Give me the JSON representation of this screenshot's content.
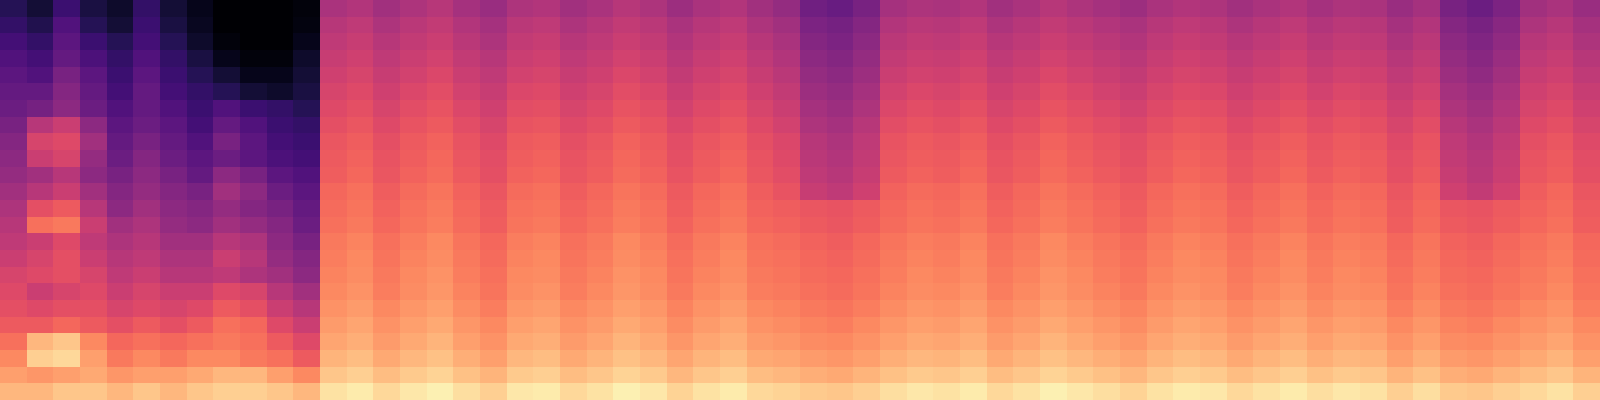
{
  "chart_data": {
    "type": "heatmap",
    "color": "magma",
    "tick_labels": false,
    "zlim": [
      0,
      100
    ],
    "cells": [
      [
        15,
        10,
        20,
        12,
        8,
        18,
        10,
        5,
        0,
        0,
        0,
        2,
        47,
        49,
        45,
        48,
        50,
        46,
        43,
        48,
        49,
        45,
        47,
        50,
        48,
        44,
        47,
        49,
        45,
        42,
        33,
        31,
        35,
        46,
        48,
        47,
        49,
        45,
        47,
        50,
        48,
        46,
        44,
        47,
        49,
        48,
        45,
        47,
        49,
        46,
        48,
        47,
        43,
        46,
        35,
        32,
        36,
        45,
        47,
        43
      ],
      [
        18,
        14,
        25,
        15,
        10,
        20,
        12,
        6,
        0,
        0,
        0,
        3,
        50,
        52,
        48,
        51,
        53,
        49,
        46,
        51,
        52,
        48,
        50,
        53,
        51,
        47,
        50,
        52,
        48,
        45,
        36,
        34,
        38,
        49,
        51,
        50,
        52,
        48,
        50,
        53,
        51,
        49,
        47,
        50,
        52,
        51,
        48,
        50,
        52,
        49,
        51,
        50,
        46,
        49,
        38,
        35,
        39,
        48,
        50,
        46
      ],
      [
        22,
        18,
        28,
        20,
        15,
        22,
        15,
        8,
        2,
        0,
        0,
        5,
        52,
        54,
        50,
        53,
        55,
        51,
        48,
        53,
        54,
        50,
        52,
        55,
        53,
        49,
        52,
        54,
        50,
        47,
        38,
        36,
        40,
        51,
        53,
        52,
        54,
        50,
        52,
        55,
        53,
        51,
        49,
        52,
        54,
        53,
        50,
        52,
        54,
        51,
        53,
        52,
        48,
        51,
        40,
        37,
        41,
        50,
        52,
        48
      ],
      [
        25,
        22,
        30,
        24,
        18,
        25,
        18,
        12,
        5,
        2,
        2,
        8,
        54,
        56,
        52,
        55,
        57,
        53,
        50,
        55,
        56,
        52,
        54,
        57,
        55,
        51,
        54,
        56,
        52,
        49,
        40,
        38,
        42,
        53,
        55,
        54,
        56,
        52,
        54,
        57,
        55,
        53,
        51,
        54,
        56,
        55,
        52,
        54,
        56,
        53,
        55,
        54,
        50,
        53,
        42,
        39,
        43,
        52,
        54,
        50
      ],
      [
        28,
        25,
        35,
        28,
        20,
        28,
        20,
        15,
        10,
        5,
        5,
        10,
        56,
        58,
        54,
        57,
        59,
        55,
        52,
        57,
        58,
        54,
        56,
        59,
        57,
        53,
        56,
        58,
        54,
        51,
        42,
        40,
        44,
        55,
        57,
        56,
        58,
        54,
        56,
        59,
        57,
        55,
        53,
        56,
        58,
        57,
        54,
        56,
        58,
        55,
        57,
        56,
        52,
        55,
        44,
        41,
        45,
        54,
        56,
        52
      ],
      [
        30,
        30,
        38,
        30,
        22,
        30,
        22,
        18,
        15,
        10,
        8,
        12,
        58,
        60,
        56,
        59,
        61,
        57,
        54,
        59,
        60,
        56,
        58,
        61,
        59,
        55,
        58,
        60,
        56,
        53,
        44,
        42,
        46,
        57,
        59,
        58,
        60,
        56,
        58,
        61,
        59,
        57,
        55,
        58,
        60,
        59,
        56,
        58,
        60,
        57,
        59,
        58,
        54,
        57,
        46,
        43,
        47,
        56,
        58,
        54
      ],
      [
        32,
        34,
        40,
        32,
        25,
        30,
        25,
        20,
        25,
        20,
        18,
        15,
        60,
        62,
        58,
        61,
        63,
        59,
        56,
        61,
        62,
        58,
        60,
        63,
        61,
        57,
        60,
        62,
        58,
        55,
        46,
        44,
        48,
        59,
        61,
        60,
        62,
        58,
        60,
        63,
        61,
        59,
        57,
        60,
        62,
        61,
        58,
        60,
        62,
        59,
        61,
        60,
        56,
        59,
        48,
        45,
        49,
        58,
        60,
        56
      ],
      [
        35,
        50,
        55,
        40,
        28,
        32,
        28,
        22,
        30,
        25,
        20,
        18,
        62,
        64,
        60,
        63,
        65,
        61,
        58,
        63,
        64,
        60,
        62,
        65,
        63,
        59,
        62,
        64,
        60,
        57,
        48,
        46,
        50,
        61,
        63,
        62,
        64,
        60,
        62,
        65,
        63,
        61,
        59,
        62,
        64,
        63,
        60,
        62,
        64,
        61,
        63,
        62,
        58,
        61,
        50,
        47,
        51,
        60,
        62,
        58
      ],
      [
        38,
        58,
        60,
        45,
        30,
        35,
        30,
        25,
        35,
        28,
        22,
        20,
        64,
        66,
        62,
        65,
        67,
        63,
        60,
        65,
        66,
        62,
        64,
        67,
        65,
        61,
        64,
        66,
        62,
        59,
        50,
        48,
        52,
        63,
        65,
        64,
        66,
        62,
        64,
        67,
        65,
        63,
        61,
        64,
        66,
        65,
        62,
        64,
        66,
        63,
        65,
        64,
        60,
        63,
        52,
        49,
        53,
        62,
        64,
        60
      ],
      [
        40,
        55,
        58,
        42,
        32,
        38,
        32,
        28,
        32,
        28,
        24,
        22,
        65,
        67,
        63,
        66,
        68,
        64,
        61,
        66,
        67,
        63,
        65,
        68,
        66,
        62,
        65,
        67,
        63,
        60,
        51,
        49,
        53,
        64,
        66,
        65,
        67,
        63,
        65,
        68,
        66,
        64,
        62,
        65,
        67,
        66,
        63,
        65,
        67,
        64,
        66,
        65,
        61,
        64,
        53,
        50,
        54,
        63,
        65,
        61
      ],
      [
        42,
        45,
        50,
        40,
        35,
        40,
        35,
        30,
        40,
        35,
        28,
        25,
        66,
        68,
        64,
        67,
        69,
        65,
        62,
        67,
        68,
        64,
        66,
        69,
        67,
        63,
        66,
        68,
        64,
        61,
        52,
        50,
        54,
        65,
        67,
        66,
        68,
        64,
        66,
        69,
        67,
        65,
        63,
        66,
        68,
        67,
        64,
        66,
        68,
        65,
        67,
        66,
        62,
        65,
        54,
        51,
        55,
        64,
        66,
        62
      ],
      [
        45,
        50,
        55,
        45,
        38,
        42,
        38,
        35,
        45,
        40,
        32,
        28,
        68,
        70,
        66,
        69,
        71,
        67,
        64,
        69,
        70,
        66,
        68,
        71,
        69,
        65,
        68,
        70,
        66,
        63,
        54,
        52,
        56,
        67,
        69,
        68,
        70,
        66,
        68,
        71,
        69,
        67,
        65,
        68,
        70,
        69,
        66,
        68,
        70,
        67,
        69,
        68,
        64,
        67,
        56,
        53,
        57,
        66,
        68,
        64
      ],
      [
        48,
        62,
        65,
        50,
        40,
        45,
        40,
        38,
        42,
        38,
        35,
        30,
        69,
        71,
        67,
        70,
        72,
        68,
        65,
        70,
        71,
        67,
        69,
        72,
        70,
        66,
        69,
        71,
        67,
        66,
        64,
        63,
        65,
        68,
        70,
        69,
        71,
        67,
        69,
        72,
        70,
        68,
        66,
        69,
        71,
        70,
        67,
        69,
        71,
        68,
        70,
        69,
        65,
        68,
        64,
        63,
        65,
        67,
        69,
        65
      ],
      [
        50,
        70,
        72,
        55,
        45,
        48,
        42,
        40,
        45,
        42,
        38,
        32,
        70,
        72,
        68,
        71,
        73,
        69,
        66,
        71,
        72,
        68,
        70,
        73,
        71,
        67,
        70,
        72,
        68,
        67,
        65,
        64,
        66,
        69,
        71,
        70,
        72,
        68,
        70,
        73,
        71,
        69,
        67,
        70,
        72,
        71,
        68,
        70,
        72,
        69,
        71,
        70,
        66,
        69,
        65,
        64,
        66,
        68,
        70,
        66
      ],
      [
        52,
        55,
        60,
        52,
        48,
        50,
        45,
        45,
        50,
        48,
        40,
        35,
        72,
        74,
        70,
        73,
        75,
        71,
        68,
        73,
        74,
        70,
        72,
        75,
        73,
        69,
        72,
        74,
        70,
        69,
        67,
        66,
        68,
        71,
        73,
        72,
        74,
        70,
        72,
        75,
        73,
        71,
        69,
        72,
        74,
        73,
        70,
        72,
        74,
        71,
        73,
        72,
        68,
        71,
        67,
        66,
        68,
        70,
        72,
        68
      ],
      [
        55,
        58,
        62,
        55,
        50,
        52,
        48,
        48,
        55,
        50,
        42,
        38,
        73,
        75,
        71,
        74,
        76,
        72,
        69,
        74,
        75,
        71,
        73,
        76,
        74,
        70,
        73,
        75,
        71,
        70,
        68,
        67,
        69,
        72,
        74,
        73,
        75,
        71,
        73,
        76,
        74,
        72,
        70,
        73,
        75,
        74,
        71,
        73,
        75,
        72,
        74,
        73,
        69,
        72,
        68,
        67,
        69,
        71,
        73,
        69
      ],
      [
        58,
        60,
        62,
        58,
        52,
        55,
        50,
        50,
        52,
        48,
        45,
        40,
        74,
        76,
        72,
        75,
        77,
        73,
        70,
        75,
        76,
        72,
        74,
        77,
        75,
        71,
        74,
        76,
        72,
        71,
        69,
        68,
        70,
        73,
        75,
        74,
        76,
        72,
        74,
        77,
        75,
        73,
        71,
        74,
        76,
        75,
        72,
        74,
        76,
        73,
        75,
        74,
        70,
        73,
        69,
        68,
        70,
        72,
        74,
        70
      ],
      [
        60,
        55,
        58,
        60,
        55,
        58,
        55,
        55,
        60,
        58,
        50,
        45,
        75,
        77,
        73,
        76,
        78,
        74,
        71,
        76,
        77,
        73,
        75,
        78,
        76,
        72,
        75,
        77,
        73,
        72,
        70,
        69,
        71,
        74,
        76,
        75,
        77,
        73,
        75,
        78,
        76,
        74,
        72,
        75,
        77,
        76,
        73,
        75,
        77,
        74,
        76,
        75,
        71,
        74,
        70,
        69,
        71,
        73,
        75,
        71
      ],
      [
        62,
        60,
        62,
        62,
        58,
        60,
        58,
        60,
        65,
        62,
        55,
        50,
        77,
        79,
        75,
        78,
        80,
        76,
        73,
        78,
        79,
        75,
        77,
        80,
        78,
        74,
        77,
        79,
        75,
        74,
        72,
        71,
        73,
        76,
        78,
        77,
        79,
        75,
        77,
        80,
        78,
        76,
        74,
        77,
        79,
        78,
        75,
        77,
        79,
        76,
        78,
        77,
        73,
        76,
        72,
        71,
        73,
        75,
        77,
        73
      ],
      [
        65,
        65,
        68,
        65,
        62,
        65,
        62,
        65,
        70,
        68,
        60,
        55,
        79,
        81,
        77,
        80,
        82,
        78,
        75,
        80,
        81,
        77,
        79,
        82,
        80,
        76,
        79,
        81,
        77,
        76,
        74,
        73,
        75,
        78,
        80,
        79,
        81,
        77,
        79,
        82,
        80,
        78,
        76,
        79,
        81,
        80,
        77,
        79,
        81,
        78,
        80,
        79,
        75,
        78,
        74,
        73,
        75,
        77,
        79,
        75
      ],
      [
        70,
        85,
        88,
        75,
        68,
        70,
        68,
        70,
        72,
        70,
        65,
        60,
        81,
        83,
        79,
        82,
        84,
        80,
        77,
        82,
        83,
        79,
        81,
        84,
        82,
        78,
        81,
        83,
        79,
        78,
        76,
        75,
        77,
        80,
        82,
        81,
        83,
        79,
        81,
        84,
        82,
        80,
        78,
        81,
        83,
        82,
        79,
        81,
        83,
        80,
        82,
        81,
        77,
        80,
        76,
        75,
        77,
        79,
        81,
        77
      ],
      [
        75,
        90,
        92,
        80,
        72,
        75,
        72,
        75,
        75,
        72,
        70,
        65,
        84,
        86,
        82,
        85,
        87,
        83,
        80,
        85,
        86,
        82,
        84,
        87,
        85,
        81,
        84,
        86,
        82,
        81,
        79,
        78,
        80,
        83,
        85,
        84,
        86,
        82,
        84,
        87,
        85,
        83,
        81,
        84,
        86,
        85,
        82,
        84,
        86,
        83,
        85,
        84,
        80,
        83,
        79,
        78,
        80,
        82,
        84,
        80
      ],
      [
        80,
        78,
        80,
        82,
        78,
        80,
        80,
        82,
        85,
        85,
        80,
        75,
        88,
        90,
        86,
        89,
        91,
        87,
        84,
        89,
        90,
        86,
        88,
        91,
        89,
        85,
        88,
        90,
        86,
        85,
        83,
        82,
        84,
        87,
        89,
        88,
        90,
        86,
        88,
        91,
        89,
        87,
        85,
        88,
        90,
        89,
        86,
        88,
        90,
        87,
        89,
        88,
        84,
        87,
        83,
        82,
        84,
        86,
        88,
        84
      ],
      [
        85,
        85,
        88,
        88,
        85,
        88,
        85,
        88,
        90,
        90,
        88,
        85,
        94,
        96,
        92,
        95,
        97,
        93,
        90,
        95,
        96,
        92,
        94,
        97,
        95,
        91,
        94,
        96,
        92,
        91,
        89,
        88,
        90,
        93,
        95,
        94,
        96,
        92,
        94,
        97,
        95,
        93,
        91,
        94,
        96,
        95,
        92,
        94,
        96,
        93,
        95,
        94,
        90,
        93,
        89,
        88,
        90,
        92,
        94,
        90
      ]
    ]
  }
}
